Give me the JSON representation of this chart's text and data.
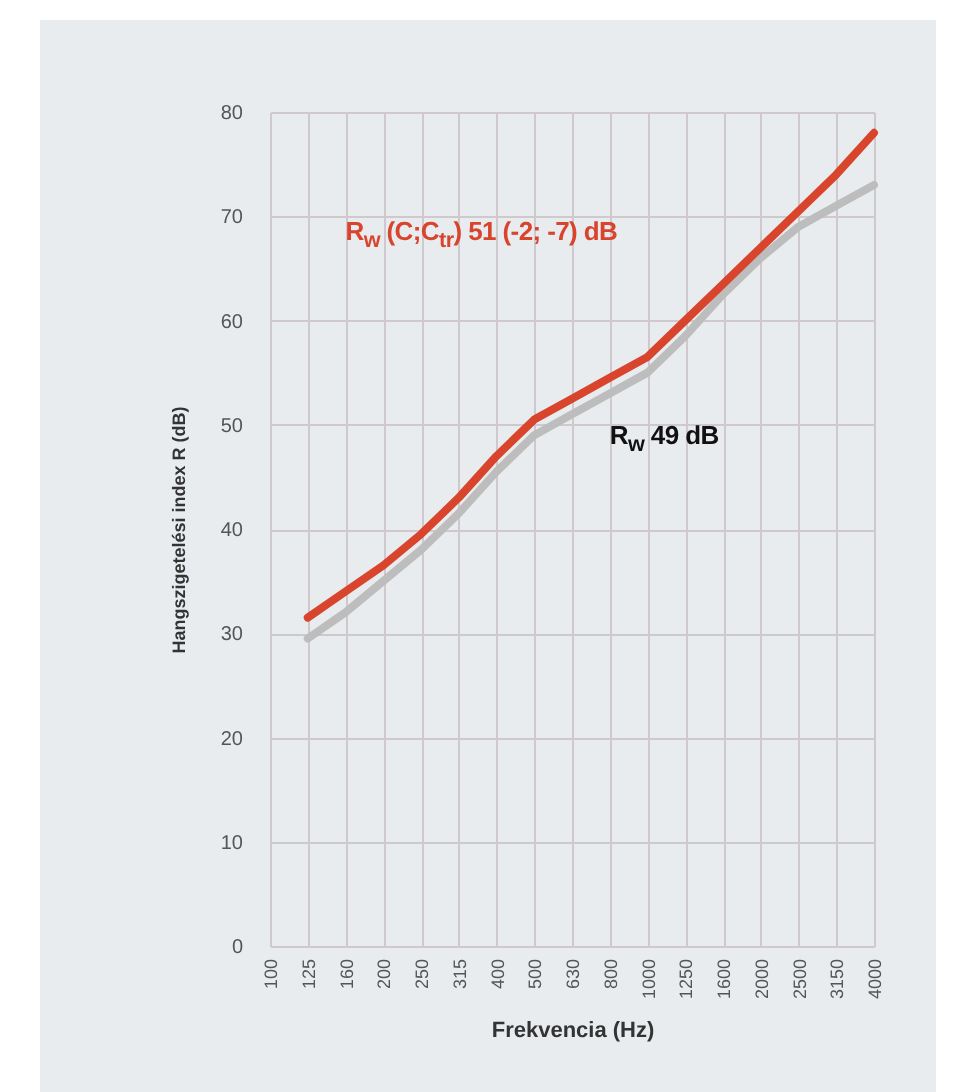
{
  "chart_data": {
    "type": "line",
    "xlabel": "Frekvencia (Hz)",
    "ylabel": "Hangszigetelési index R (dB)",
    "categories": [
      "100",
      "125",
      "160",
      "200",
      "250",
      "315",
      "400",
      "500",
      "630",
      "800",
      "1000",
      "1250",
      "1600",
      "2000",
      "2500",
      "3150",
      "4000"
    ],
    "series": [
      {
        "name": "R$_{w}$ 49 dB",
        "color": "#bdbdbd",
        "values": [
          null,
          29.5,
          32,
          35,
          38,
          41.5,
          45.5,
          49,
          51,
          53,
          55,
          58.5,
          62.5,
          66,
          69,
          71,
          73
        ]
      },
      {
        "name": "R$_{w}$ (C;C$_{tr}$) 51 (-2; -7) dB",
        "color": "#d9442c",
        "values": [
          null,
          31.5,
          34,
          36.5,
          39.5,
          43,
          47,
          50.5,
          52.5,
          54.5,
          56.5,
          60,
          63.5,
          67,
          70.5,
          74,
          78
        ]
      }
    ],
    "ylim": [
      0,
      80
    ],
    "yticks": [
      0,
      10,
      20,
      30,
      40,
      50,
      60,
      70,
      80
    ],
    "grid": true,
    "marker": "none",
    "line_style": "solid"
  }
}
